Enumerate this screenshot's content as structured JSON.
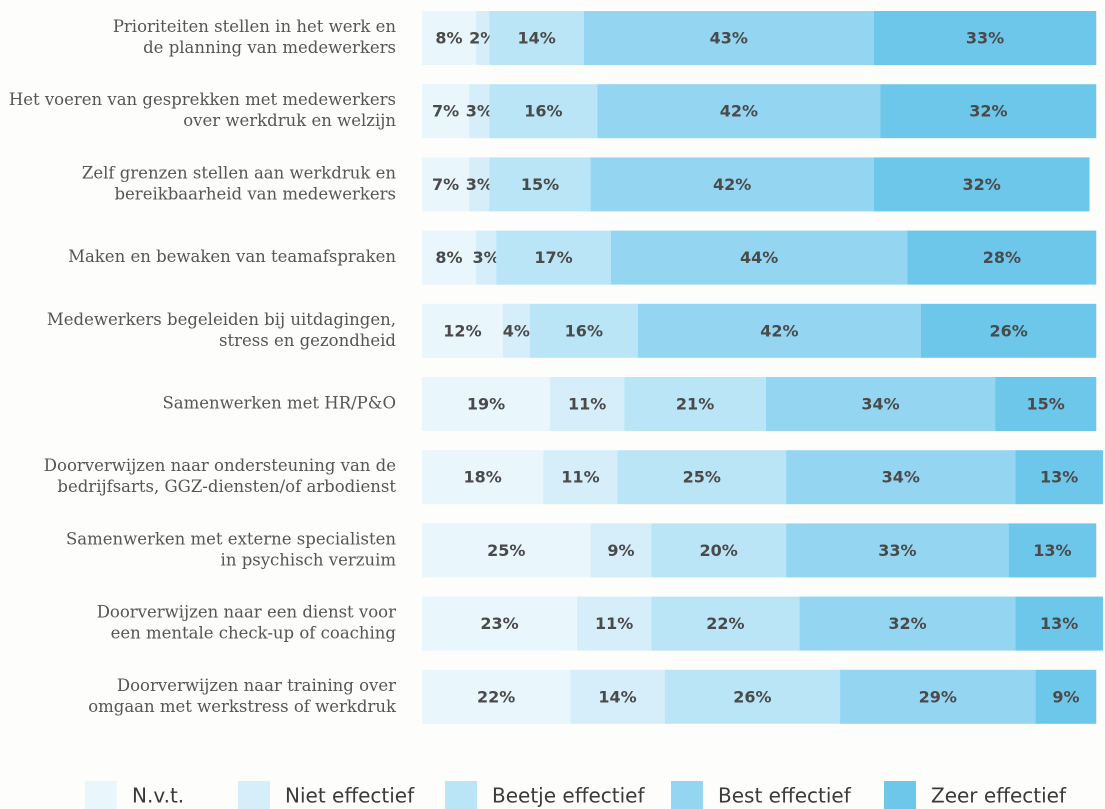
{
  "chart_data": {
    "type": "stacked-bar-horizontal",
    "categories": [
      [
        "Prioriteiten stellen in het werk en",
        "de planning van medewerkers"
      ],
      [
        "Het voeren van gesprekken met medewerkers",
        "over werkdruk en welzijn"
      ],
      [
        "Zelf grenzen stellen aan werkdruk en",
        "bereikbaarheid van medewerkers"
      ],
      [
        "Maken en bewaken van teamafspraken"
      ],
      [
        "Medewerkers begeleiden bij uitdagingen,",
        "stress en gezondheid"
      ],
      [
        "Samenwerken met HR/P&O"
      ],
      [
        "Doorverwijzen naar ondersteuning van de",
        "bedrijfsarts, GGZ-diensten/of arbodienst"
      ],
      [
        "Samenwerken met externe specialisten",
        "in psychisch verzuim"
      ],
      [
        "Doorverwijzen naar een dienst voor",
        "een mentale check-up of coaching"
      ],
      [
        "Doorverwijzen naar training over",
        "omgaan met werkstress of werkdruk"
      ]
    ],
    "series": [
      {
        "name": "N.v.t.",
        "color": "#e9f6fc",
        "values": [
          8,
          7,
          7,
          8,
          12,
          19,
          18,
          25,
          23,
          22
        ],
        "value_labels": [
          "8%",
          "7%",
          "7%",
          "8%",
          "12%",
          "19%",
          "18%",
          "25%",
          "23%",
          "22%"
        ]
      },
      {
        "name": "Niet effectief",
        "color": "#d5eefa",
        "values": [
          2,
          3,
          3,
          3,
          4,
          11,
          11,
          9,
          11,
          14
        ],
        "value_labels": [
          "2%",
          "3%",
          "3%",
          "3%",
          "4%",
          "11%",
          "11%",
          "9%",
          "11%",
          "14%"
        ]
      },
      {
        "name": "Beetje effectief",
        "color": "#bae5f7",
        "values": [
          14,
          16,
          15,
          17,
          16,
          21,
          25,
          20,
          22,
          26
        ],
        "value_labels": [
          "14%",
          "16%",
          "15%",
          "17%",
          "16%",
          "21%",
          "25%",
          "20%",
          "22%",
          "26%"
        ]
      },
      {
        "name": "Best effectief",
        "color": "#94d6f2",
        "values": [
          43,
          42,
          42,
          44,
          42,
          34,
          34,
          33,
          32,
          29
        ],
        "value_labels": [
          "43%",
          "42%",
          "42%",
          "44%",
          "42%",
          "34%",
          "34%",
          "33%",
          "32%",
          "29%"
        ]
      },
      {
        "name": "Zeer effectief",
        "color": "#6cc7eb",
        "values": [
          33,
          32,
          32,
          28,
          26,
          15,
          13,
          13,
          13,
          9
        ],
        "value_labels": [
          "33%",
          "32%",
          "32%",
          "28%",
          "26%",
          "15%",
          "13%",
          "13%",
          "13%",
          "9%"
        ]
      }
    ],
    "legend": "bottom"
  }
}
